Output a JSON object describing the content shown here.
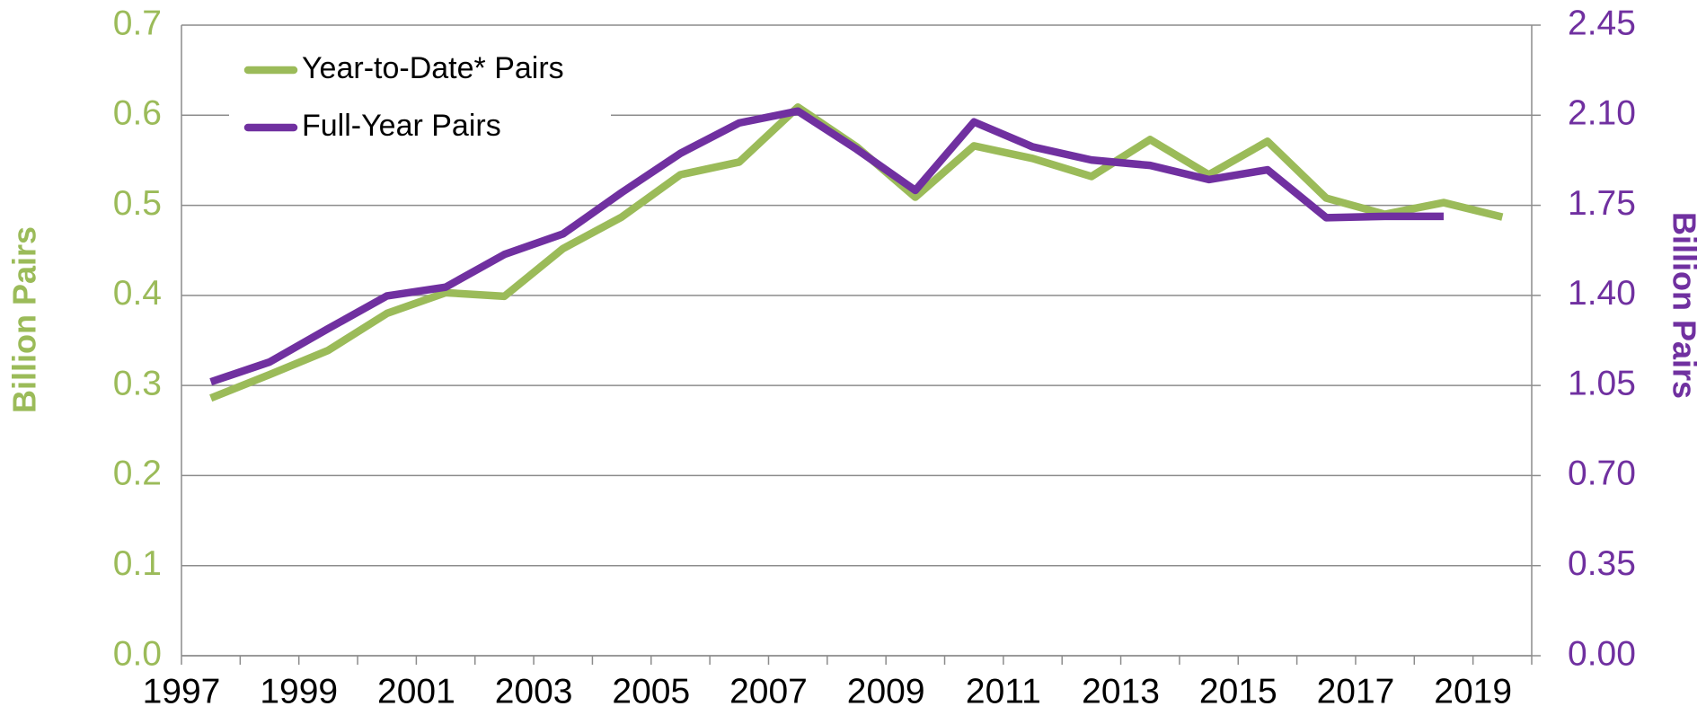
{
  "chart_data": {
    "type": "line",
    "categories": [
      "1997",
      null,
      "1999",
      null,
      "2001",
      null,
      "2003",
      null,
      "2005",
      null,
      "2007",
      null,
      "2009",
      null,
      "2011",
      null,
      "2013",
      null,
      "2015",
      null,
      "2017",
      null,
      "2019"
    ],
    "series": [
      {
        "name": "Year-to-Date* Pairs",
        "color": "#9bbb59",
        "axis": "y",
        "values": [
          0.286,
          0.312,
          0.339,
          0.38,
          0.403,
          0.399,
          0.452,
          0.487,
          0.534,
          0.548,
          0.609,
          0.565,
          0.509,
          0.566,
          0.552,
          0.532,
          0.573,
          0.534,
          0.571,
          0.508,
          0.49,
          0.503,
          0.487
        ]
      },
      {
        "name": "Full-Year Pairs",
        "color": "#7030a0",
        "axis": "y2",
        "values": [
          1.064,
          1.141,
          1.271,
          1.398,
          1.432,
          1.559,
          1.639,
          1.8,
          1.952,
          2.07,
          2.116,
          1.968,
          1.808,
          2.074,
          1.977,
          1.926,
          1.905,
          1.85,
          1.888,
          1.702,
          1.707,
          1.707,
          null
        ]
      }
    ],
    "ylabel": "Billion Pairs",
    "y2label": "Billion Pairs",
    "ylim": [
      0,
      0.7
    ],
    "yticks": [
      {
        "value": 0,
        "label": "0.0"
      },
      0.1,
      0.2,
      0.3,
      0.4,
      0.5,
      0.6,
      0.7
    ],
    "y2lim": [
      0,
      2.45
    ],
    "y2ticks": [
      {
        "value": 0,
        "label": "0.00"
      },
      0.35,
      {
        "value": 0.7,
        "label": "0.70"
      },
      1.05,
      {
        "value": 1.4,
        "label": "1.40"
      },
      1.75,
      {
        "value": 2.1,
        "label": "2.10"
      },
      2.45
    ],
    "grid": true,
    "legend": "upper left"
  }
}
